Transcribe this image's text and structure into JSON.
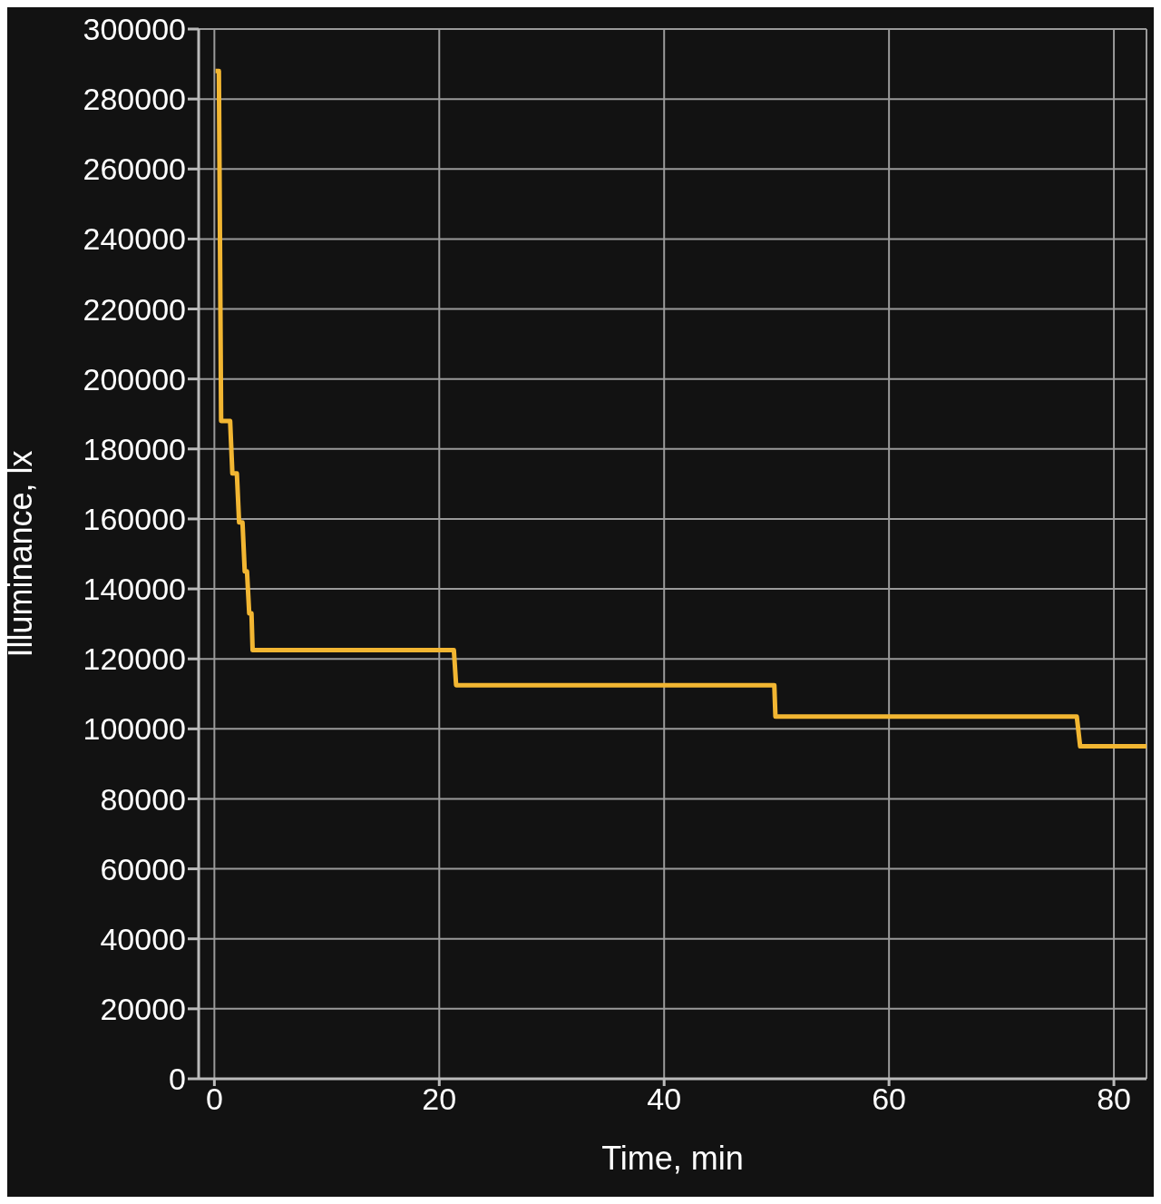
{
  "chart_data": {
    "type": "line",
    "xlabel": "Time, min",
    "ylabel": "Illuminance, lx",
    "series": [
      {
        "color": "#f2b632",
        "x": [
          0.1,
          0.4,
          0.6,
          1.4,
          1.6,
          2.0,
          2.2,
          2.5,
          2.7,
          2.9,
          3.1,
          3.3,
          3.4,
          21.3,
          21.5,
          49.8,
          49.9,
          76.7,
          77.0,
          82.9
        ],
        "values": [
          288000,
          288000,
          188000,
          188000,
          173000,
          173000,
          159000,
          159000,
          145000,
          145000,
          133000,
          133000,
          122500,
          122500,
          112500,
          112500,
          103500,
          103500,
          95000,
          95000
        ]
      }
    ],
    "xlim": [
      -1.4,
      82.9
    ],
    "xticks": [
      0,
      20,
      40,
      60,
      80
    ],
    "ylim": [
      0,
      300000
    ],
    "yticks": [
      0,
      20000,
      40000,
      60000,
      80000,
      100000,
      120000,
      140000,
      160000,
      180000,
      200000,
      220000,
      240000,
      260000,
      280000,
      300000
    ],
    "grid": true,
    "legend": false,
    "marker": "none",
    "line_style": "solid"
  }
}
